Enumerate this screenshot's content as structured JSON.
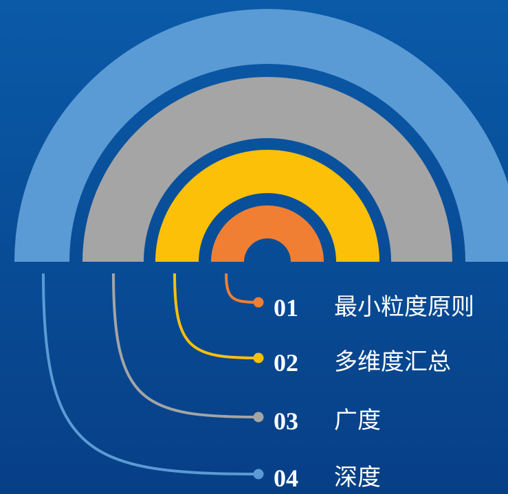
{
  "diagram": {
    "colors": {
      "background_top": "#0a5aa8",
      "background_bottom": "#073f86",
      "gap": "#0a52a0"
    },
    "rings": [
      {
        "color": "#f07f34"
      },
      {
        "color": "#fdc008"
      },
      {
        "color": "#a5a5a5"
      },
      {
        "color": "#5b9bd5"
      }
    ],
    "items": [
      {
        "num": "01",
        "label": "最小粒度原则"
      },
      {
        "num": "02",
        "label": "多维度汇总"
      },
      {
        "num": "03",
        "label": "广度"
      },
      {
        "num": "04",
        "label": "深度"
      }
    ]
  }
}
